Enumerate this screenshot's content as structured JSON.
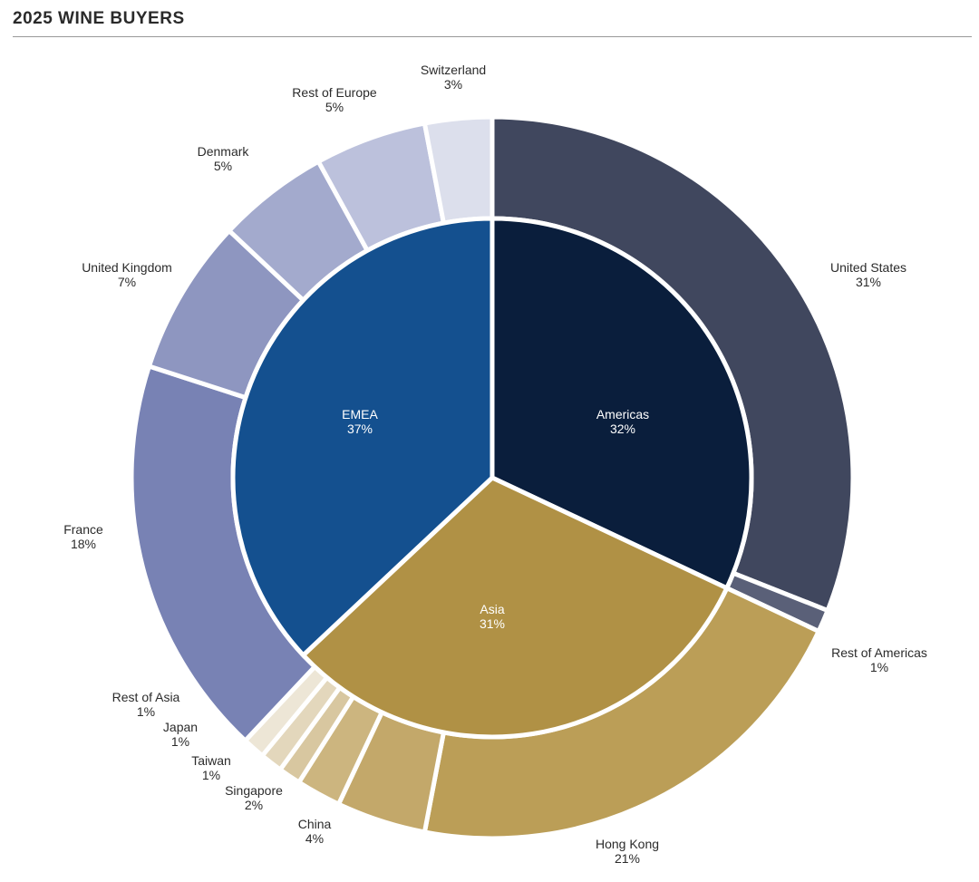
{
  "chart_data": {
    "type": "pie",
    "title": "2025 WINE BUYERS",
    "inner": [
      {
        "label": "Americas",
        "value": 32,
        "value_label": "32%",
        "color": "#0a1e3c"
      },
      {
        "label": "Asia",
        "value": 31,
        "value_label": "31%",
        "color": "#b09145"
      },
      {
        "label": "EMEA",
        "value": 37,
        "value_label": "37%",
        "color": "#14508f"
      }
    ],
    "outer": [
      {
        "label": "United States",
        "value": 31,
        "value_label": "31%",
        "group": "Americas",
        "color": "#40475e"
      },
      {
        "label": "Rest of Americas",
        "value": 1,
        "value_label": "1%",
        "group": "Americas",
        "color": "#5a6078"
      },
      {
        "label": "Hong Kong",
        "value": 21,
        "value_label": "21%",
        "group": "Asia",
        "color": "#bb9e57"
      },
      {
        "label": "China",
        "value": 4,
        "value_label": "4%",
        "group": "Asia",
        "color": "#c3a86a"
      },
      {
        "label": "Singapore",
        "value": 2,
        "value_label": "2%",
        "group": "Asia",
        "color": "#ccb57f"
      },
      {
        "label": "Taiwan",
        "value": 1,
        "value_label": "1%",
        "group": "Asia",
        "color": "#d8c7a0"
      },
      {
        "label": "Japan",
        "value": 1,
        "value_label": "1%",
        "group": "Asia",
        "color": "#e3d7bc"
      },
      {
        "label": "Rest of Asia",
        "value": 1,
        "value_label": "1%",
        "group": "Asia",
        "color": "#ede6d6"
      },
      {
        "label": "France",
        "value": 18,
        "value_label": "18%",
        "group": "EMEA",
        "color": "#7882b4"
      },
      {
        "label": "United Kingdom",
        "value": 7,
        "value_label": "7%",
        "group": "EMEA",
        "color": "#8e96c0"
      },
      {
        "label": "Denmark",
        "value": 5,
        "value_label": "5%",
        "group": "EMEA",
        "color": "#a3aacd"
      },
      {
        "label": "Rest of Europe",
        "value": 5,
        "value_label": "5%",
        "group": "EMEA",
        "color": "#bcc1dc"
      },
      {
        "label": "Switzerland",
        "value": 3,
        "value_label": "3%",
        "group": "EMEA",
        "color": "#dcdfec"
      }
    ]
  }
}
